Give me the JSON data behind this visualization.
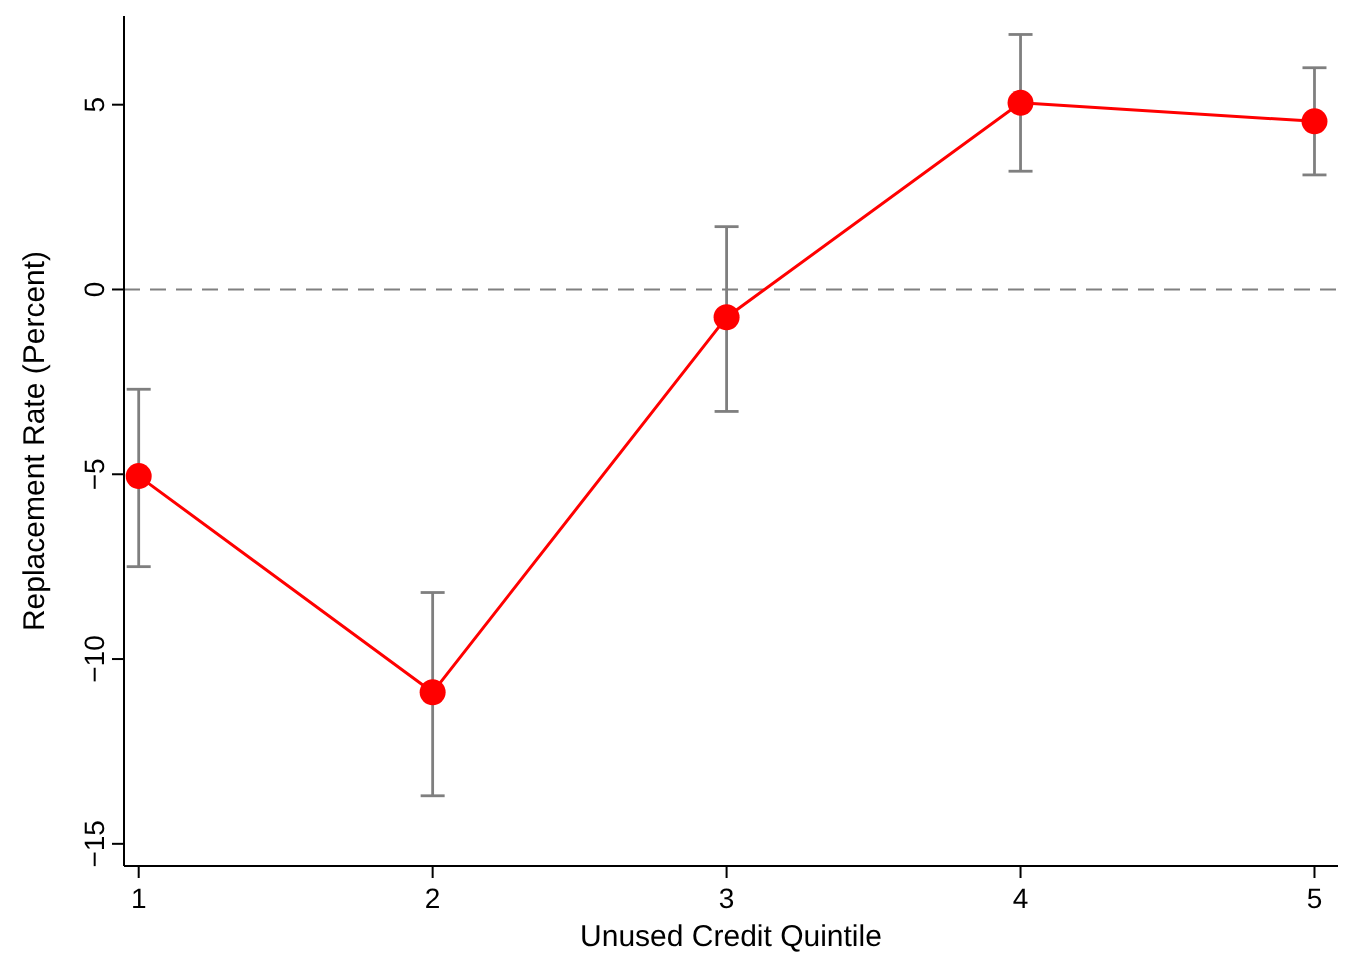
{
  "chart_data": {
    "type": "line",
    "xlabel": "Unused Credit Quintile",
    "ylabel": "Replacement Rate (Percent)",
    "x": [
      1,
      2,
      3,
      4,
      5
    ],
    "series": [
      {
        "color": "#ff0000",
        "values": [
          -5.05,
          -10.9,
          -0.75,
          5.05,
          4.55
        ],
        "errors": [
          [
            -7.5,
            -2.7
          ],
          [
            -13.7,
            -8.2
          ],
          [
            -3.3,
            1.7
          ],
          [
            3.2,
            6.9
          ],
          [
            3.1,
            6.0
          ]
        ]
      }
    ],
    "xlim": [
      0.95,
      5.08
    ],
    "xticks": [
      1,
      2,
      3,
      4,
      5
    ],
    "ylim": [
      -15.6,
      7.4
    ],
    "yticks": [
      -15,
      -10,
      -5,
      0,
      5
    ],
    "ref_lines": [
      {
        "axis": "y",
        "value": 0,
        "color": "#808080",
        "line_style": "dashed"
      }
    ],
    "marker": "circle",
    "line_style": "solid"
  }
}
